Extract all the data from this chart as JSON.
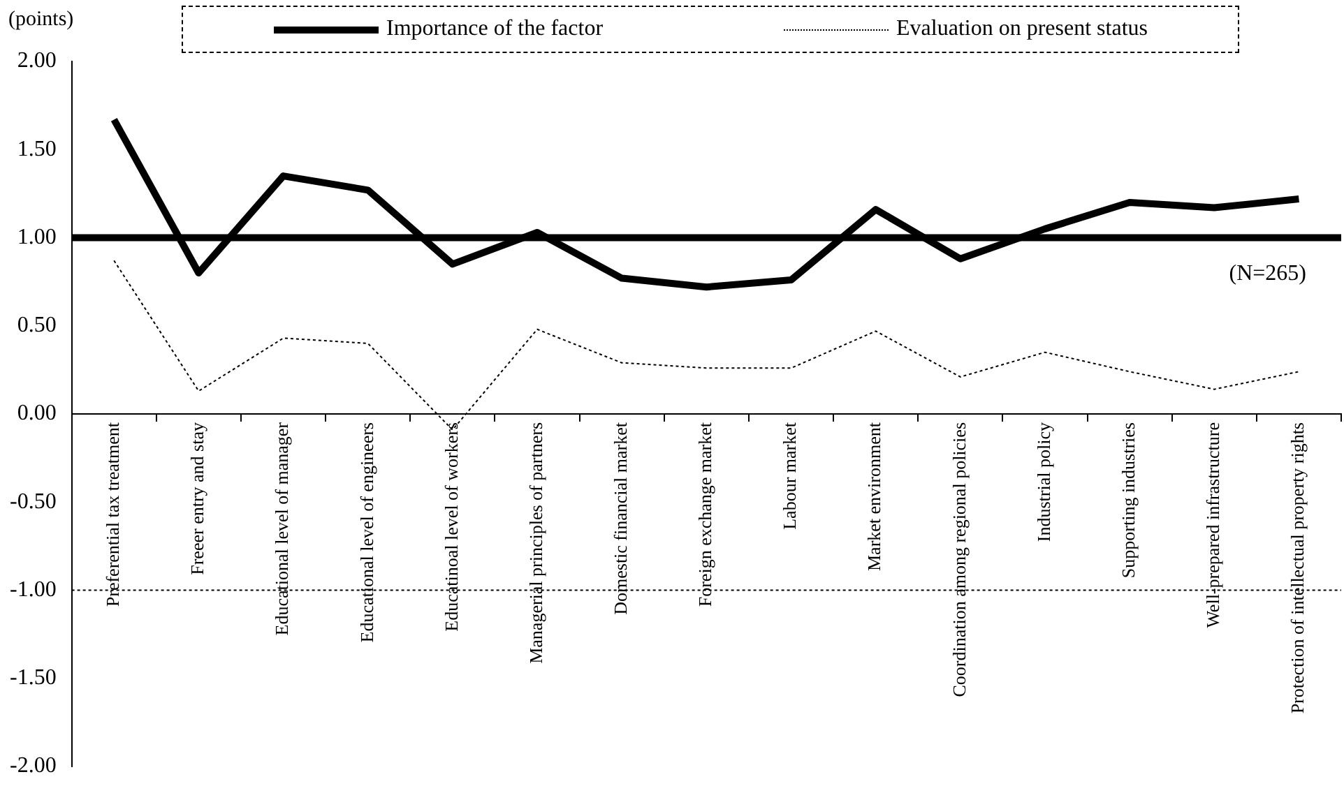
{
  "chart_data": {
    "type": "line",
    "ylabel": "(points)",
    "legend": "top",
    "marker": "none",
    "tick_labels": "y",
    "categories": [
      "Preferential tax treatment",
      "Freeer entry and stay",
      "Educational level of manager",
      "Educational level of engineers",
      "Educatinoal level of workers",
      "Managerial principles of partners",
      "Domestic financial market",
      "Foreign exchange market",
      "Labour market",
      "Market environment",
      "Coordination among regional policies",
      "Industrial policy",
      "Supporting industries",
      "Well-prepared infrastructure",
      "Protection of intellectual property rights"
    ],
    "series": [
      {
        "name": "Importance of the factor",
        "color": "#000000",
        "line_style": "solid",
        "values": [
          1.67,
          0.8,
          1.35,
          1.27,
          0.85,
          1.03,
          0.77,
          0.72,
          0.76,
          1.16,
          0.88,
          1.05,
          1.2,
          1.17,
          1.22
        ]
      },
      {
        "name": "Evaluation on present status",
        "color": "#000000",
        "line_style": "dotted",
        "values": [
          0.87,
          0.13,
          0.43,
          0.4,
          -0.09,
          0.48,
          0.29,
          0.26,
          0.26,
          0.47,
          0.21,
          0.35,
          0.24,
          0.14,
          0.24
        ]
      }
    ],
    "ylim": [
      -2,
      2
    ],
    "yticks": [
      {
        "value": 2,
        "label": "2.00"
      },
      {
        "value": 1.5,
        "label": "1.50"
      },
      {
        "value": 1,
        "label": "1.00"
      },
      {
        "value": 0.5,
        "label": "0.50"
      },
      {
        "value": 0,
        "label": "0.00"
      },
      {
        "value": -0.5,
        "label": "-0.50"
      },
      {
        "value": -1,
        "label": "-1.00"
      },
      {
        "value": -1.5,
        "label": "-1.50"
      },
      {
        "value": -2,
        "label": "-2.00"
      }
    ],
    "ref_lines": [
      {
        "axis": "y",
        "value": 1,
        "color": "#000000",
        "line_style": "solid"
      },
      {
        "axis": "y",
        "value": -1,
        "color": "#000000",
        "line_style": "dotted"
      }
    ],
    "annotations": [
      "(N=265)"
    ]
  }
}
